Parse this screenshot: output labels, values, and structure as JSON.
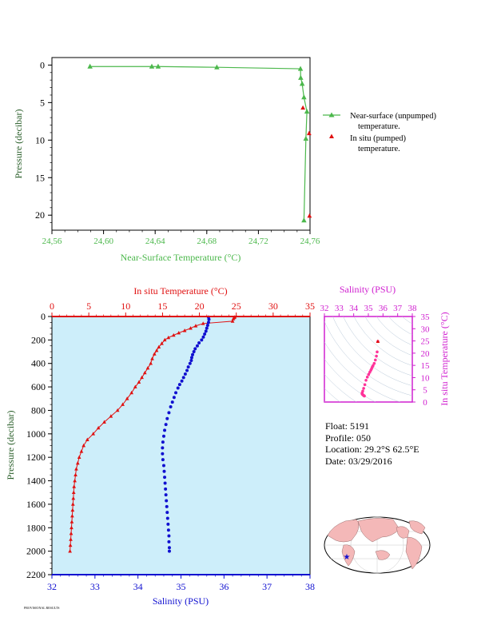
{
  "colors": {
    "green": "#4cb84c",
    "red": "#e01010",
    "blue": "#1010d0",
    "magenta": "#d020d0",
    "pink": "#ff3399",
    "panel_bg": "#cdeefa",
    "axis_dark": "#2a5f2a"
  },
  "info": {
    "float": "Float: 5191",
    "profile": "Profile: 050",
    "location": "Location: 29.2°S 62.5°E",
    "date": "Date: 03/29/2016"
  },
  "credit": "PROVISIONAL RESULTS",
  "chart_data": [
    {
      "type": "line",
      "xlabel": "Near-Surface Temperature (°C)",
      "ylabel": "Pressure (decibar)",
      "xlim": [
        24.56,
        24.76
      ],
      "ylim": [
        22,
        -1
      ],
      "x_ticks": [
        "24.56",
        "24.60",
        "24.64",
        "24.68",
        "24.72",
        "24.76"
      ],
      "y_ticks": [
        "0",
        "5",
        "10",
        "15",
        "20"
      ],
      "legend_position": "right",
      "legend": [
        "Near-surface (unpumped)",
        "temperature.",
        "In situ (pumped)",
        "temperature."
      ],
      "series": [
        {
          "name": "Near-surface (unpumped) temperature.",
          "points": [
            [
              24.5895,
              0.2
            ],
            [
              24.6374,
              0.2
            ],
            [
              24.6423,
              0.2
            ],
            [
              24.6878,
              0.3
            ],
            [
              24.7526,
              0.5
            ],
            [
              24.7528,
              1.7
            ],
            [
              24.7539,
              2.5
            ],
            [
              24.7553,
              4.3
            ],
            [
              24.7576,
              6.2
            ],
            [
              24.7568,
              9.8
            ],
            [
              24.7553,
              20.7
            ]
          ]
        },
        {
          "name": "In situ (pumped) temperature.",
          "points": [
            [
              24.7545,
              5.7
            ],
            [
              24.7593,
              9.1
            ],
            [
              24.7596,
              20.1
            ]
          ]
        }
      ]
    },
    {
      "type": "scatter",
      "xlabel_top": "In situ Temperature (°C)",
      "xlabel_bottom": "Salinity (PSU)",
      "ylabel": "Pressure (decibar)",
      "temp_lim": [
        0,
        35
      ],
      "sal_lim": [
        32,
        38
      ],
      "ylim": [
        2200,
        0
      ],
      "temp_ticks": [
        "0",
        "5",
        "10",
        "15",
        "20",
        "25",
        "30",
        "35"
      ],
      "sal_ticks": [
        "32",
        "33",
        "34",
        "35",
        "36",
        "37",
        "38"
      ],
      "y_ticks": [
        "0",
        "200",
        "400",
        "600",
        "800",
        "1000",
        "1200",
        "1400",
        "1600",
        "1800",
        "2000",
        "2200"
      ],
      "series": [
        {
          "name": "In situ Temperature (°C)",
          "points": [
            [
              24.8,
              5
            ],
            [
              24.7,
              10
            ],
            [
              24.6,
              20
            ],
            [
              24.5,
              40
            ],
            [
              20.5,
              60
            ],
            [
              19.5,
              80
            ],
            [
              18.8,
              100
            ],
            [
              18.0,
              120
            ],
            [
              17.2,
              140
            ],
            [
              16.5,
              160
            ],
            [
              15.8,
              180
            ],
            [
              15.3,
              200
            ],
            [
              14.9,
              230
            ],
            [
              14.5,
              260
            ],
            [
              14.2,
              290
            ],
            [
              13.9,
              320
            ],
            [
              13.6,
              360
            ],
            [
              13.4,
              400
            ],
            [
              13.0,
              440
            ],
            [
              12.6,
              480
            ],
            [
              12.2,
              520
            ],
            [
              11.8,
              560
            ],
            [
              11.3,
              600
            ],
            [
              10.8,
              650
            ],
            [
              10.2,
              700
            ],
            [
              9.6,
              750
            ],
            [
              8.9,
              800
            ],
            [
              8.0,
              850
            ],
            [
              7.1,
              900
            ],
            [
              6.3,
              950
            ],
            [
              5.6,
              1000
            ],
            [
              4.8,
              1050
            ],
            [
              4.3,
              1100
            ],
            [
              4.0,
              1150
            ],
            [
              3.7,
              1200
            ],
            [
              3.5,
              1250
            ],
            [
              3.3,
              1300
            ],
            [
              3.2,
              1350
            ],
            [
              3.1,
              1400
            ],
            [
              3.0,
              1450
            ],
            [
              2.95,
              1500
            ],
            [
              2.9,
              1550
            ],
            [
              2.85,
              1600
            ],
            [
              2.8,
              1650
            ],
            [
              2.75,
              1700
            ],
            [
              2.7,
              1750
            ],
            [
              2.65,
              1800
            ],
            [
              2.6,
              1850
            ],
            [
              2.55,
              1900
            ],
            [
              2.5,
              1950
            ],
            [
              2.45,
              2000
            ]
          ]
        },
        {
          "name": "Salinity (PSU)",
          "points": [
            [
              35.64,
              5
            ],
            [
              35.65,
              25
            ],
            [
              35.64,
              50
            ],
            [
              35.62,
              75
            ],
            [
              35.6,
              100
            ],
            [
              35.58,
              125
            ],
            [
              35.55,
              150
            ],
            [
              35.52,
              175
            ],
            [
              35.48,
              200
            ],
            [
              35.42,
              225
            ],
            [
              35.38,
              250
            ],
            [
              35.33,
              275
            ],
            [
              35.3,
              300
            ],
            [
              35.27,
              325
            ],
            [
              35.25,
              350
            ],
            [
              35.24,
              375
            ],
            [
              35.21,
              400
            ],
            [
              35.17,
              430
            ],
            [
              35.14,
              460
            ],
            [
              35.1,
              490
            ],
            [
              35.06,
              520
            ],
            [
              35.02,
              550
            ],
            [
              34.97,
              580
            ],
            [
              34.93,
              610
            ],
            [
              34.88,
              650
            ],
            [
              34.84,
              690
            ],
            [
              34.8,
              730
            ],
            [
              34.76,
              770
            ],
            [
              34.72,
              820
            ],
            [
              34.68,
              870
            ],
            [
              34.65,
              920
            ],
            [
              34.62,
              970
            ],
            [
              34.6,
              1020
            ],
            [
              34.58,
              1070
            ],
            [
              34.57,
              1120
            ],
            [
              34.57,
              1170
            ],
            [
              34.58,
              1220
            ],
            [
              34.6,
              1270
            ],
            [
              34.61,
              1320
            ],
            [
              34.62,
              1370
            ],
            [
              34.63,
              1420
            ],
            [
              34.64,
              1470
            ],
            [
              34.65,
              1520
            ],
            [
              34.66,
              1570
            ],
            [
              34.67,
              1620
            ],
            [
              34.68,
              1670
            ],
            [
              34.69,
              1720
            ],
            [
              34.7,
              1770
            ],
            [
              34.71,
              1820
            ],
            [
              34.72,
              1870
            ],
            [
              34.72,
              1920
            ],
            [
              34.73,
              1970
            ],
            [
              34.73,
              2000
            ]
          ]
        }
      ]
    },
    {
      "type": "scatter",
      "xlabel": "Salinity (PSU)",
      "ylabel": "In situ Temperature (°C)",
      "xlim": [
        32,
        38
      ],
      "ylim": [
        0,
        35
      ],
      "x_ticks": [
        "32",
        "33",
        "34",
        "35",
        "36",
        "37",
        "38"
      ],
      "y_ticks": [
        "0",
        "5",
        "10",
        "15",
        "20",
        "25",
        "30",
        "35"
      ],
      "points": [
        [
          35.65,
          24.8
        ],
        [
          35.6,
          20.5
        ],
        [
          35.55,
          18.8
        ],
        [
          35.48,
          17.2
        ],
        [
          35.4,
          15.8
        ],
        [
          35.32,
          14.9
        ],
        [
          35.26,
          14.2
        ],
        [
          35.22,
          13.6
        ],
        [
          35.17,
          13.0
        ],
        [
          35.1,
          12.2
        ],
        [
          35.02,
          11.3
        ],
        [
          34.93,
          10.2
        ],
        [
          34.84,
          8.9
        ],
        [
          34.76,
          7.1
        ],
        [
          34.68,
          5.6
        ],
        [
          34.62,
          4.5
        ],
        [
          34.58,
          3.8
        ],
        [
          34.57,
          3.4
        ],
        [
          34.6,
          3.1
        ],
        [
          34.64,
          2.9
        ],
        [
          34.68,
          2.7
        ],
        [
          34.72,
          2.5
        ],
        [
          34.73,
          2.45
        ]
      ]
    },
    {
      "type": "map",
      "marker_lat": -29.2,
      "marker_lon": 62.5
    }
  ]
}
